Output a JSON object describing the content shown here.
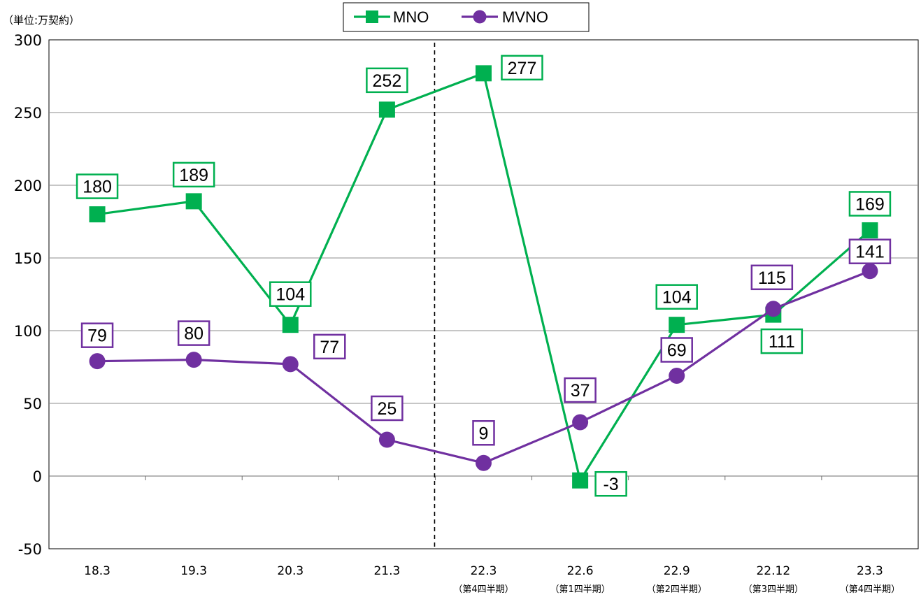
{
  "chart_data": {
    "type": "line",
    "unit_label": "（単位:万契約）",
    "categories": [
      "18.3",
      "19.3",
      "20.3",
      "21.3",
      "22.3",
      "22.6",
      "22.9",
      "22.12",
      "23.3"
    ],
    "category_sublabels": [
      "",
      "",
      "",
      "",
      "（第4四半期）",
      "（第1四半期）",
      "（第2四半期）",
      "（第3四半期）",
      "（第4四半期）"
    ],
    "ylim": [
      -50,
      300
    ],
    "yticks": [
      -50,
      0,
      50,
      100,
      150,
      200,
      250,
      300
    ],
    "grid": true,
    "legend_position": "top-center",
    "divider_after_category": "21.3",
    "series": [
      {
        "name": "MNO",
        "marker": "square",
        "color": "#00b050",
        "values": [
          180,
          189,
          104,
          252,
          277,
          -3,
          104,
          111,
          169
        ],
        "labels": [
          "180",
          "189",
          "104",
          "252",
          "277",
          "-3",
          "104",
          "111",
          "169"
        ]
      },
      {
        "name": "MVNO",
        "marker": "circle",
        "color": "#7030a0",
        "values": [
          79,
          80,
          77,
          25,
          9,
          37,
          69,
          115,
          141
        ],
        "labels": [
          "79",
          "80",
          "77",
          "25",
          "9",
          "37",
          "69",
          "115",
          "141"
        ]
      }
    ],
    "negative_color": "#ff0000",
    "axis_negative_color": "#ff0000"
  }
}
